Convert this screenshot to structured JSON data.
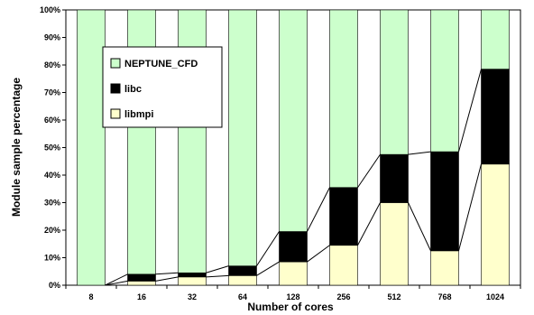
{
  "chart_data": {
    "type": "bar",
    "stacked": true,
    "percent_stacked": true,
    "xlabel": "Number of cores",
    "ylabel": "Module sample percentage",
    "categories": [
      "8",
      "16",
      "32",
      "64",
      "128",
      "256",
      "512",
      "768",
      "1024"
    ],
    "yticks": [
      "0%",
      "10%",
      "20%",
      "30%",
      "40%",
      "50%",
      "60%",
      "70%",
      "80%",
      "90%",
      "100%"
    ],
    "ylim": [
      0,
      100
    ],
    "series": [
      {
        "name": "libmpi",
        "color": "#ffffcc",
        "values": [
          0,
          1.5,
          3,
          3.5,
          8.5,
          14.5,
          30,
          12.5,
          44
        ]
      },
      {
        "name": "libc",
        "color": "#000000",
        "values": [
          0,
          2.5,
          1.5,
          3.5,
          11,
          21,
          17.5,
          36,
          34.5
        ]
      },
      {
        "name": "NEPTUNE_CFD",
        "color": "#ccffcc",
        "values": [
          100,
          96,
          95.5,
          93,
          80.5,
          64.5,
          52.5,
          51.5,
          21.5
        ]
      }
    ],
    "legend": {
      "position": "top-left",
      "order": [
        "NEPTUNE_CFD",
        "libc",
        "libmpi"
      ]
    },
    "series_lines": true,
    "grid": false
  }
}
